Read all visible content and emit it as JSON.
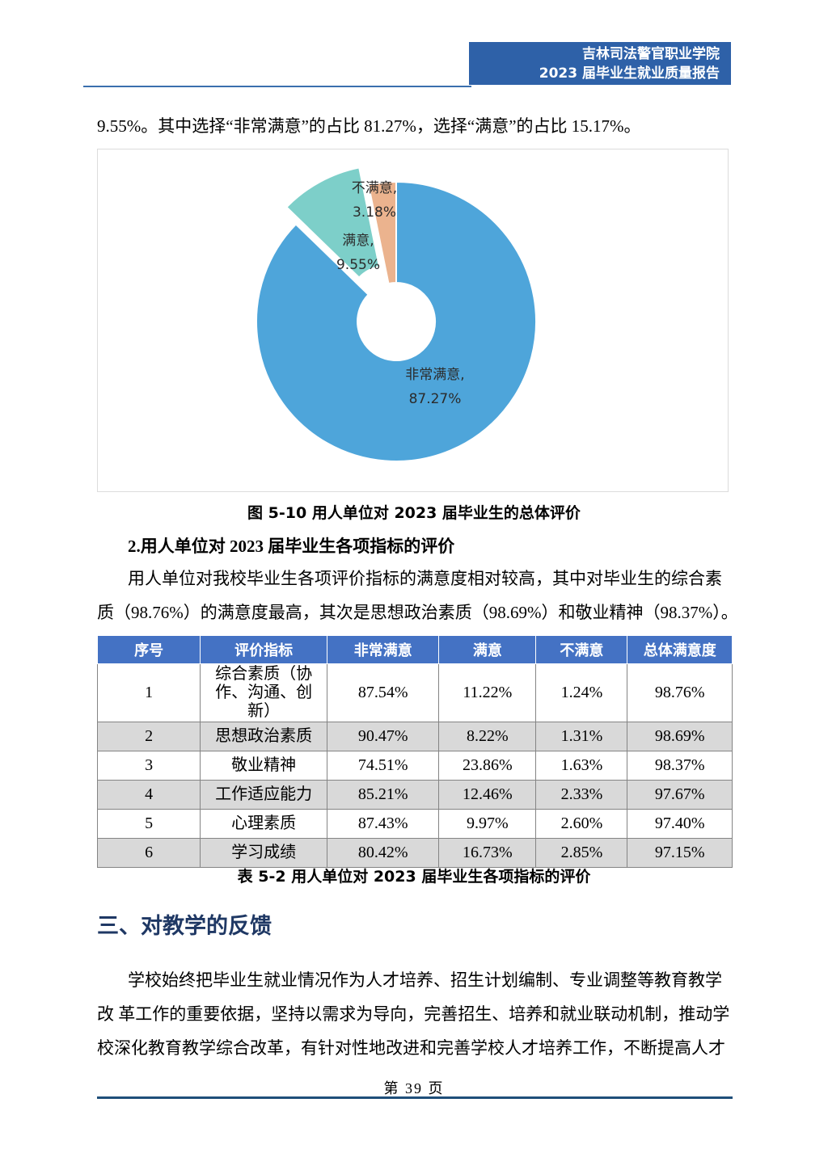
{
  "header": {
    "school": "吉林司法警官职业学院",
    "report": "2023 届毕业生就业质量报告"
  },
  "intro": "9.55%。其中选择“非常满意”的占比 81.27%，选择“满意”的占比 15.17%。",
  "figure": {
    "caption": "图 5-10 用人单位对 2023 届毕业生的总体评价"
  },
  "chart_data": {
    "type": "pie",
    "title": "用人单位对 2023 届毕业生的总体评价",
    "labels": [
      "非常满意",
      "满意",
      "不满意"
    ],
    "values": [
      87.27,
      9.55,
      3.18
    ],
    "colors": [
      "#4EA5DA",
      "#7DCFC9",
      "#EBB38E"
    ],
    "donut_hole_ratio": 0.28,
    "exploded_label": "满意",
    "data_labels": [
      [
        "非常满意,",
        "87.27%"
      ],
      [
        "满意,",
        "9.55%"
      ],
      [
        "不满意,",
        "3.18%"
      ]
    ],
    "legend_position": "none"
  },
  "section2": {
    "heading": "2.用人单位对 2023 届毕业生各项指标的评价",
    "para_lines": [
      "用人单位对我校毕业生各项评价指标的满意度相对较高，其中对毕业生的综合素",
      "质（98.76%）的满意度最高，其次是思想政治素质（98.69%）和敬业精神（98.37%）。"
    ]
  },
  "table": {
    "caption": "表 5-2 用人单位对 2023 届毕业生各项指标的评价",
    "headers": [
      "序号",
      "评价指标",
      "非常满意",
      "满意",
      "不满意",
      "总体满意度"
    ],
    "rows": [
      [
        "1",
        "综合素质（协作、沟通、创新）",
        "87.54%",
        "11.22%",
        "1.24%",
        "98.76%"
      ],
      [
        "2",
        "思想政治素质",
        "90.47%",
        "8.22%",
        "1.31%",
        "98.69%"
      ],
      [
        "3",
        "敬业精神",
        "74.51%",
        "23.86%",
        "1.63%",
        "98.37%"
      ],
      [
        "4",
        "工作适应能力",
        "85.21%",
        "12.46%",
        "2.33%",
        "97.67%"
      ],
      [
        "5",
        "心理素质",
        "87.43%",
        "9.97%",
        "2.60%",
        "97.40%"
      ],
      [
        "6",
        "学习成绩",
        "80.42%",
        "16.73%",
        "2.85%",
        "97.15%"
      ]
    ]
  },
  "section3": {
    "heading": "三、对教学的反馈",
    "para_lines": [
      "学校始终把毕业生就业情况作为人才培养、招生计划编制、专业调整等教育教学",
      "改 革工作的重要依据，坚持以需求为导向，完善招生、培养和就业联动机制，推动学",
      "校深化教育教学综合改革，有针对性地改进和完善学校人才培养工作，不断提高人才"
    ]
  },
  "footer": {
    "page_label": "第 39 页"
  },
  "colors": {
    "header_box": "#2E61A8",
    "header_rule": "#3A6FAD",
    "table_header_bg": "#4472C4",
    "table_alt_row": "#D9D9D9",
    "section_heading_text": "#1F3864",
    "footer_rule": "#1F4E79",
    "chart_border": "#DCDCDC"
  }
}
